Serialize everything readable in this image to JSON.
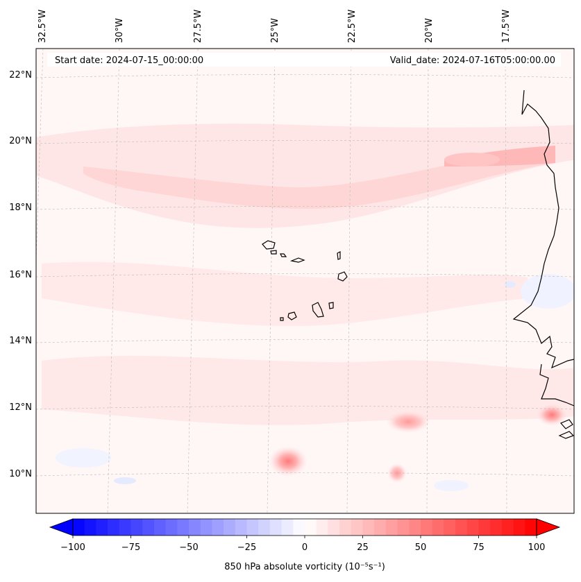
{
  "header": {
    "start_label": "Start date: 2024-07-15_00:00:00",
    "valid_label": "Valid_date: 2024-07-16T05:00:00.00"
  },
  "axes": {
    "lon_labels": [
      "32.5°W",
      "30°W",
      "27.5°W",
      "25°W",
      "22.5°W",
      "20°W",
      "17.5°W"
    ],
    "lat_labels": [
      "22°N",
      "20°N",
      "18°N",
      "16°N",
      "14°N",
      "12°N",
      "10°N"
    ]
  },
  "colorbar": {
    "ticks": [
      "−100",
      "−75",
      "−50",
      "−25",
      "0",
      "25",
      "50",
      "75",
      "100"
    ],
    "label": "850 hPa absolute vorticity (10⁻⁵s⁻¹)",
    "range": [
      -100,
      100
    ],
    "colors": {
      "negative": "#0000ff",
      "zero": "#ffffff",
      "positive": "#ff0000"
    }
  },
  "map": {
    "field_colors": {
      "background": "#fff6f6",
      "light_band": "#ffe6e6",
      "mid_band": "#ffd2d2",
      "strong": "#ff9a9a",
      "blue_patch": "#eef1ff"
    }
  }
}
